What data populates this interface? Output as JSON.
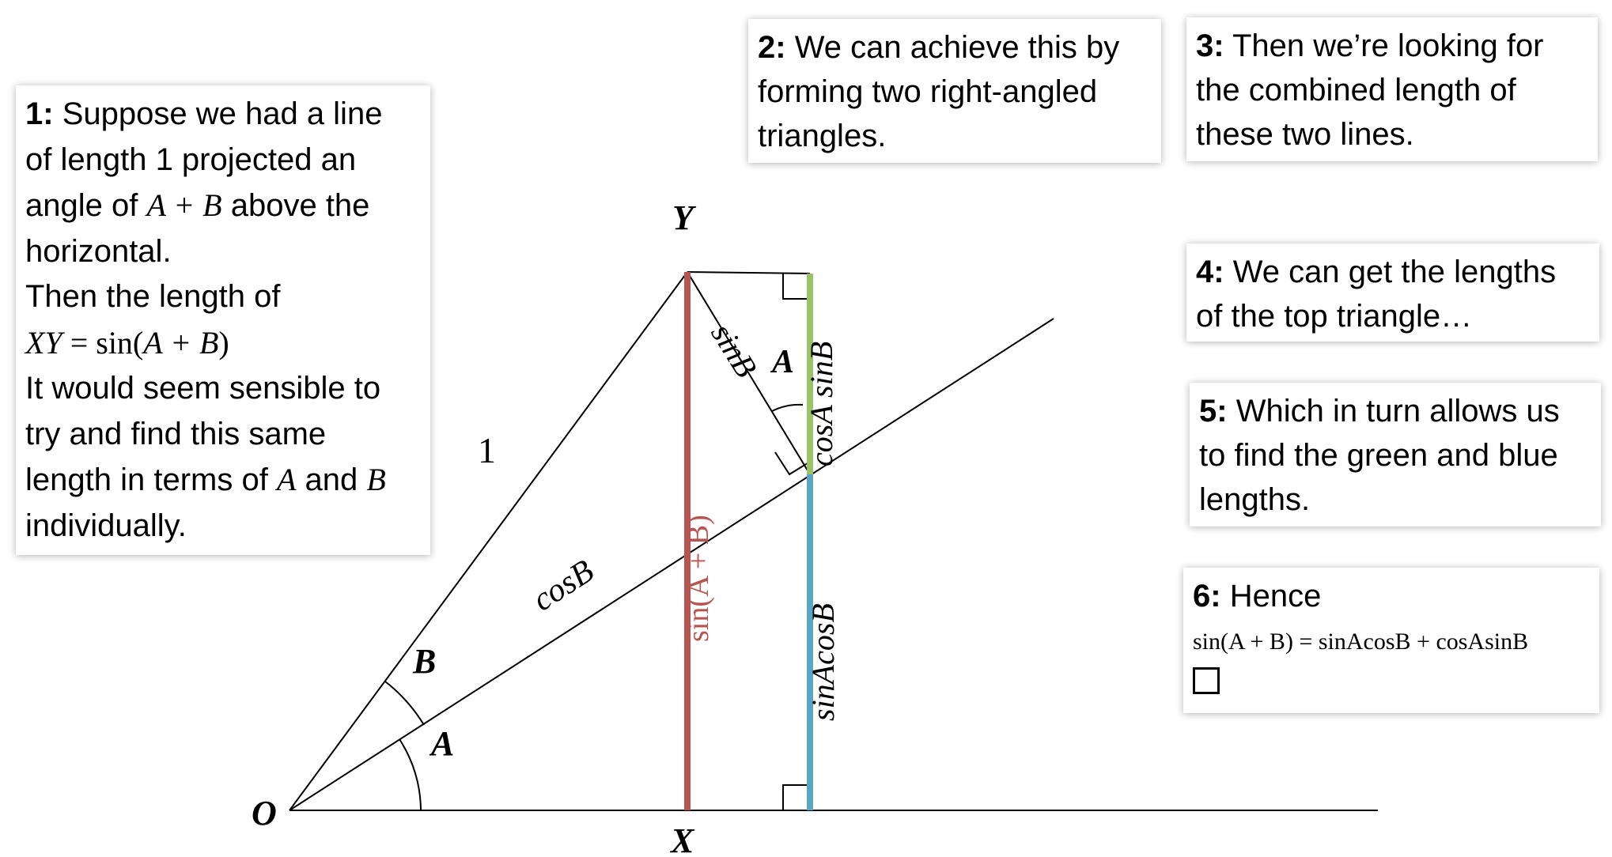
{
  "colors": {
    "red": "#b85450",
    "green": "#9bc268",
    "blue": "#5aa5c6",
    "line": "#000000"
  },
  "points": {
    "O": "O",
    "X": "X",
    "Y": "Y"
  },
  "labels": {
    "hyp": "1",
    "cosB": "cosB",
    "sinB": "sinB",
    "angleA": "A",
    "angleB": "B",
    "angleA_top": "A",
    "red": "sin(A + B)",
    "green": "cosA sinB",
    "blue": "sinAcosB"
  },
  "notes": {
    "n1": {
      "num": "1:",
      "l1": " Suppose we had a line",
      "l2": "of length 1 projected an",
      "l3a": "angle of ",
      "l3m": "A + B",
      "l3b": " above the",
      "l4": "horizontal.",
      "l5": "Then the length of",
      "l6m": "XY",
      "l6r": " = sin(",
      "l6m2": "A + B",
      "l6r2": ")",
      "l7": "It would seem sensible to",
      "l8": "try and find this same",
      "l9a": "length in terms of ",
      "l9m": "A",
      "l9b": " and ",
      "l9m2": "B",
      "l10": "individually."
    },
    "n2": {
      "num": "2:",
      "l1": " We can achieve this by",
      "l2": "forming two right-angled",
      "l3": "triangles."
    },
    "n3": {
      "num": "3:",
      "l1": " Then we’re looking for",
      "l2": "the combined length of",
      "l3": "these two lines."
    },
    "n4": {
      "num": "4:",
      "l1": " We can get the lengths",
      "l2": "of the top triangle…"
    },
    "n5": {
      "num": "5:",
      "l1": " Which in turn allows us",
      "l2": "to find the green and blue",
      "l3": "lengths."
    },
    "n6": {
      "num": "6:",
      "l1": " Hence",
      "formula": "sin(A + B) = sinAcosB + cosAsinB"
    }
  }
}
